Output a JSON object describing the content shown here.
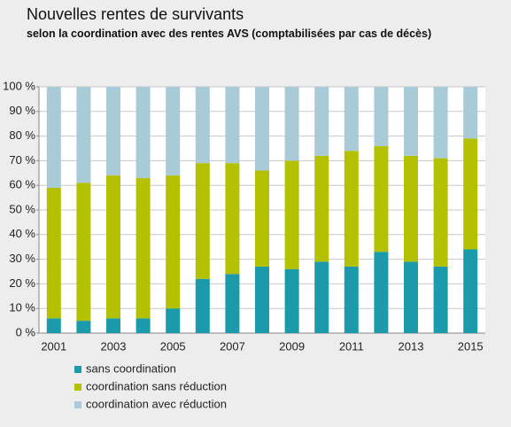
{
  "chart_data": {
    "type": "stacked_bar",
    "title": "Nouvelles rentes de survivants",
    "subtitle": "selon la coordination avec des rentes AVS (comptabilisées par cas de décès)",
    "categories": [
      "2001",
      null,
      "2003",
      null,
      "2005",
      null,
      "2007",
      null,
      "2009",
      null,
      "2011",
      null,
      "2013",
      null,
      "2015"
    ],
    "series": [
      {
        "name": "sans coordination",
        "color": "#1a9aab",
        "values": [
          6,
          5,
          6,
          6,
          10,
          22,
          24,
          27,
          26,
          29,
          27,
          33,
          29,
          27,
          34
        ]
      },
      {
        "name": "coordination sans réduction",
        "color": "#b4c100",
        "values": [
          53,
          56,
          58,
          57,
          54,
          47,
          45,
          39,
          44,
          43,
          47,
          43,
          43,
          44,
          45
        ]
      },
      {
        "name": "coordination avec réduction",
        "color": "#a9cbd7",
        "values": [
          41,
          39,
          36,
          37,
          36,
          31,
          31,
          34,
          30,
          28,
          26,
          24,
          28,
          29,
          21
        ]
      }
    ],
    "ylim": [
      0,
      100
    ],
    "yticks": [
      {
        "value": 0,
        "label": "0 %"
      },
      {
        "value": 10,
        "label": "10 %"
      },
      {
        "value": 20,
        "label": "20 %"
      },
      {
        "value": 30,
        "label": "30 %"
      },
      {
        "value": 40,
        "label": "40 %"
      },
      {
        "value": 50,
        "label": "50 %"
      },
      {
        "value": 60,
        "label": "60 %"
      },
      {
        "value": 70,
        "label": "70 %"
      },
      {
        "value": 80,
        "label": "80 %"
      },
      {
        "value": 90,
        "label": "90 %"
      },
      {
        "value": 100,
        "label": "100 %"
      }
    ],
    "grid": true
  }
}
